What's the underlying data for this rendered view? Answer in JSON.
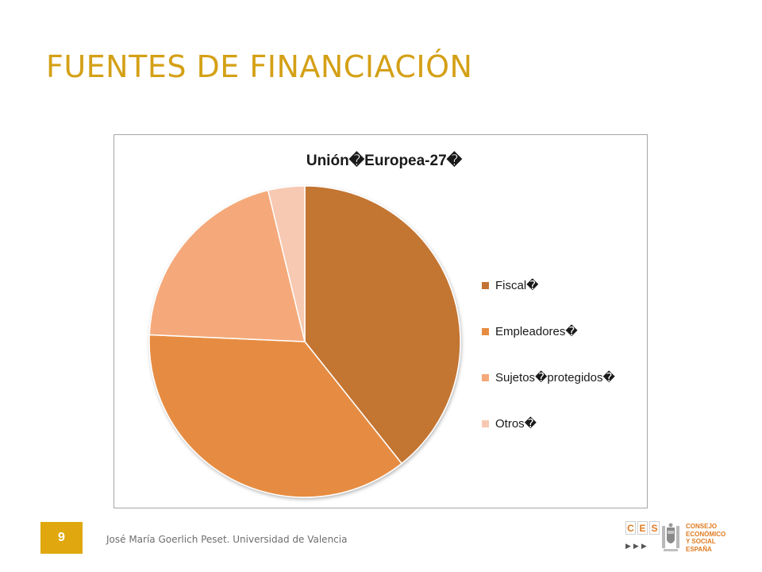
{
  "slide": {
    "title": "FUENTES DE FINANCIACIÓN",
    "page_number": "9",
    "footer": "José María Goerlich Peset. Universidad de Valencia"
  },
  "logo": {
    "ces_letters": [
      "C",
      "E",
      "S"
    ],
    "text_lines": [
      "CONSEJO",
      "ECONÓMICO",
      "Y SOCIAL",
      "ESPAÑA"
    ],
    "crest_icon": "spain-coat-of-arms-icon"
  },
  "colors": {
    "title": "#d4a016",
    "badge": "#e0a80e",
    "logo_accent": "#e07b20"
  },
  "chart_data": {
    "type": "pie",
    "title": "Unión�Europea-27�",
    "legend_position": "right",
    "categories": [
      "Fiscal�",
      "Empleadores�",
      "Sujetos�protegidos�",
      "Otros�"
    ],
    "values": [
      39.3,
      36.4,
      20.5,
      3.8
    ],
    "colors": [
      "#c37433",
      "#e68c42",
      "#f5a97a",
      "#f7c9b2"
    ],
    "start_angle": "12 o'clock",
    "direction": "clockwise"
  }
}
